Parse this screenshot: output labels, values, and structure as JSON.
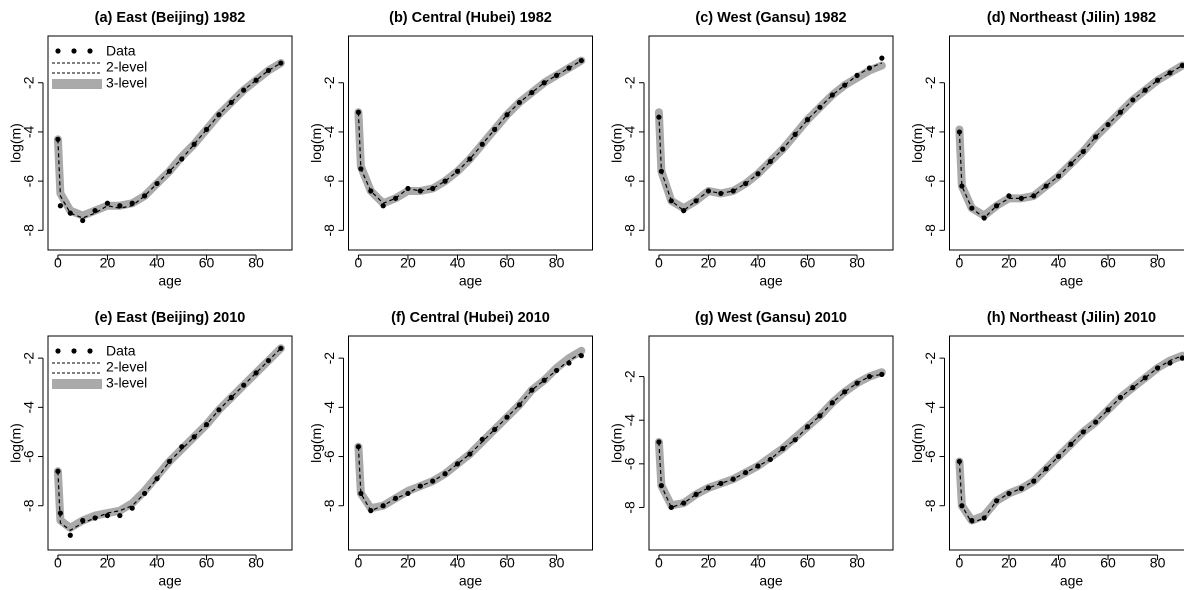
{
  "chart_data": [
    {
      "type": "line",
      "title": "(a) East (Beijing) 1982",
      "xlabel": "age",
      "ylabel": "log(m)",
      "legend": "top-left",
      "x": [
        0,
        1,
        5,
        10,
        15,
        20,
        25,
        30,
        35,
        40,
        45,
        50,
        55,
        60,
        65,
        70,
        75,
        80,
        85,
        90
      ],
      "xlim": [
        -4,
        94.5
      ],
      "xticks": [
        0,
        20,
        40,
        60,
        80
      ],
      "ylim": [
        -8.8,
        -0.1
      ],
      "yticks": [
        -8,
        -6,
        -4,
        -2
      ],
      "series": [
        {
          "name": "3-level",
          "style": "band",
          "color": "#aaaaaa",
          "values": [
            -4.3,
            -6.5,
            -7.2,
            -7.4,
            -7.2,
            -7.0,
            -7.0,
            -6.9,
            -6.6,
            -6.1,
            -5.6,
            -5.0,
            -4.5,
            -3.9,
            -3.3,
            -2.8,
            -2.3,
            -1.9,
            -1.5,
            -1.2
          ]
        },
        {
          "name": "2-level",
          "style": "dashed",
          "color": "#000000",
          "values": [
            -4.3,
            -6.6,
            -7.3,
            -7.5,
            -7.3,
            -7.0,
            -7.1,
            -7.0,
            -6.6,
            -6.1,
            -5.6,
            -5.1,
            -4.5,
            -3.9,
            -3.3,
            -2.8,
            -2.3,
            -1.9,
            -1.5,
            -1.2
          ]
        },
        {
          "name": "Data",
          "style": "points",
          "color": "#000000",
          "values": [
            -4.3,
            -7.0,
            -7.3,
            -7.6,
            -7.2,
            -6.9,
            -7.0,
            -6.9,
            -6.6,
            -6.1,
            -5.6,
            -5.1,
            -4.5,
            -3.9,
            -3.3,
            -2.8,
            -2.3,
            -1.9,
            -1.5,
            -1.2
          ]
        }
      ]
    },
    {
      "type": "line",
      "title": "(b) Central (Hubei) 1982",
      "xlabel": "age",
      "ylabel": "log(m)",
      "x": [
        0,
        1,
        5,
        10,
        15,
        20,
        25,
        30,
        35,
        40,
        45,
        50,
        55,
        60,
        65,
        70,
        75,
        80,
        85,
        90
      ],
      "xlim": [
        -4,
        94.5
      ],
      "xticks": [
        0,
        20,
        40,
        60,
        80
      ],
      "ylim": [
        -8.8,
        -0.1
      ],
      "yticks": [
        -8,
        -6,
        -4,
        -2
      ],
      "series": [
        {
          "style": "band",
          "color": "#aaaaaa",
          "values": [
            -3.2,
            -5.4,
            -6.4,
            -6.9,
            -6.7,
            -6.4,
            -6.4,
            -6.3,
            -6.0,
            -5.6,
            -5.1,
            -4.5,
            -3.9,
            -3.3,
            -2.8,
            -2.4,
            -2.0,
            -1.7,
            -1.4,
            -1.1
          ]
        },
        {
          "style": "dashed",
          "color": "#000000",
          "values": [
            -3.2,
            -5.5,
            -6.4,
            -6.9,
            -6.7,
            -6.3,
            -6.4,
            -6.3,
            -6.0,
            -5.6,
            -5.1,
            -4.5,
            -3.9,
            -3.3,
            -2.8,
            -2.4,
            -2.0,
            -1.7,
            -1.4,
            -1.1
          ]
        },
        {
          "style": "points",
          "color": "#000000",
          "values": [
            -3.2,
            -5.5,
            -6.4,
            -7.0,
            -6.7,
            -6.3,
            -6.4,
            -6.3,
            -6.0,
            -5.6,
            -5.1,
            -4.5,
            -3.9,
            -3.3,
            -2.8,
            -2.4,
            -2.0,
            -1.7,
            -1.4,
            -1.1
          ]
        }
      ]
    },
    {
      "type": "line",
      "title": "(c) West (Gansu) 1982",
      "xlabel": "age",
      "ylabel": "log(m)",
      "x": [
        0,
        1,
        5,
        10,
        15,
        20,
        25,
        30,
        35,
        40,
        45,
        50,
        55,
        60,
        65,
        70,
        75,
        80,
        85,
        90
      ],
      "xlim": [
        -4,
        94.5
      ],
      "xticks": [
        0,
        20,
        40,
        60,
        80
      ],
      "ylim": [
        -8.8,
        -0.1
      ],
      "yticks": [
        -8,
        -6,
        -4,
        -2
      ],
      "series": [
        {
          "style": "band",
          "color": "#aaaaaa",
          "values": [
            -3.2,
            -5.6,
            -6.8,
            -7.1,
            -6.8,
            -6.4,
            -6.5,
            -6.4,
            -6.1,
            -5.7,
            -5.2,
            -4.7,
            -4.1,
            -3.5,
            -3.0,
            -2.5,
            -2.1,
            -1.8,
            -1.5,
            -1.3
          ]
        },
        {
          "style": "dashed",
          "color": "#000000",
          "values": [
            -3.3,
            -5.6,
            -6.8,
            -7.2,
            -6.8,
            -6.4,
            -6.5,
            -6.4,
            -6.1,
            -5.7,
            -5.2,
            -4.7,
            -4.1,
            -3.5,
            -3.0,
            -2.5,
            -2.1,
            -1.7,
            -1.4,
            -1.2
          ]
        },
        {
          "style": "points",
          "color": "#000000",
          "values": [
            -3.4,
            -5.6,
            -6.8,
            -7.2,
            -6.8,
            -6.4,
            -6.5,
            -6.4,
            -6.1,
            -5.7,
            -5.2,
            -4.7,
            -4.1,
            -3.5,
            -3.0,
            -2.5,
            -2.1,
            -1.7,
            -1.4,
            -1.0
          ]
        }
      ]
    },
    {
      "type": "line",
      "title": "(d) Northeast (Jilin) 1982",
      "xlabel": "age",
      "ylabel": "log(m)",
      "x": [
        0,
        1,
        5,
        10,
        15,
        20,
        25,
        30,
        35,
        40,
        45,
        50,
        55,
        60,
        65,
        70,
        75,
        80,
        85,
        90
      ],
      "xlim": [
        -4,
        94.5
      ],
      "xticks": [
        0,
        20,
        40,
        60,
        80
      ],
      "ylim": [
        -8.8,
        -0.1
      ],
      "yticks": [
        -8,
        -6,
        -4,
        -2
      ],
      "series": [
        {
          "style": "band",
          "color": "#aaaaaa",
          "values": [
            -3.9,
            -6.2,
            -7.1,
            -7.4,
            -7.0,
            -6.7,
            -6.7,
            -6.6,
            -6.2,
            -5.8,
            -5.3,
            -4.8,
            -4.2,
            -3.7,
            -3.2,
            -2.7,
            -2.3,
            -1.9,
            -1.6,
            -1.3
          ]
        },
        {
          "style": "dashed",
          "color": "#000000",
          "values": [
            -4.0,
            -6.2,
            -7.1,
            -7.5,
            -7.0,
            -6.7,
            -6.7,
            -6.6,
            -6.2,
            -5.8,
            -5.3,
            -4.8,
            -4.2,
            -3.7,
            -3.2,
            -2.7,
            -2.3,
            -1.9,
            -1.6,
            -1.3
          ]
        },
        {
          "style": "points",
          "color": "#000000",
          "values": [
            -4.0,
            -6.2,
            -7.1,
            -7.5,
            -7.0,
            -6.6,
            -6.7,
            -6.6,
            -6.2,
            -5.8,
            -5.3,
            -4.8,
            -4.2,
            -3.7,
            -3.2,
            -2.7,
            -2.3,
            -1.9,
            -1.6,
            -1.3
          ]
        }
      ]
    },
    {
      "type": "line",
      "title": "(e) East (Beijing) 2010",
      "xlabel": "age",
      "ylabel": "log(m)",
      "legend": "top-left",
      "x": [
        0,
        1,
        5,
        10,
        15,
        20,
        25,
        30,
        35,
        40,
        45,
        50,
        55,
        60,
        65,
        70,
        75,
        80,
        85,
        90
      ],
      "xlim": [
        -4,
        94.5
      ],
      "xticks": [
        0,
        20,
        40,
        60,
        80
      ],
      "ylim": [
        -9.8,
        -1.1
      ],
      "yticks": [
        -8,
        -6,
        -4,
        -2
      ],
      "series": [
        {
          "name": "3-level",
          "style": "band",
          "color": "#aaaaaa",
          "values": [
            -6.6,
            -8.6,
            -8.9,
            -8.6,
            -8.4,
            -8.3,
            -8.2,
            -7.9,
            -7.4,
            -6.8,
            -6.2,
            -5.7,
            -5.2,
            -4.7,
            -4.1,
            -3.6,
            -3.1,
            -2.6,
            -2.1,
            -1.6
          ]
        },
        {
          "name": "2-level",
          "style": "dashed",
          "color": "#000000",
          "values": [
            -6.6,
            -8.7,
            -9.0,
            -8.7,
            -8.5,
            -8.3,
            -8.2,
            -8.0,
            -7.5,
            -6.9,
            -6.2,
            -5.7,
            -5.2,
            -4.7,
            -4.1,
            -3.6,
            -3.1,
            -2.6,
            -2.1,
            -1.6
          ]
        },
        {
          "name": "Data",
          "style": "points",
          "color": "#000000",
          "values": [
            -6.6,
            -8.3,
            -9.2,
            -8.6,
            -8.5,
            -8.4,
            -8.4,
            -8.1,
            -7.5,
            -6.9,
            -6.2,
            -5.6,
            -5.2,
            -4.7,
            -4.1,
            -3.6,
            -3.1,
            -2.6,
            -2.1,
            -1.6
          ]
        }
      ]
    },
    {
      "type": "line",
      "title": "(f) Central (Hubei) 2010",
      "xlabel": "age",
      "ylabel": "log(m)",
      "x": [
        0,
        1,
        5,
        10,
        15,
        20,
        25,
        30,
        35,
        40,
        45,
        50,
        55,
        60,
        65,
        70,
        75,
        80,
        85,
        90
      ],
      "xlim": [
        -4,
        94.5
      ],
      "xticks": [
        0,
        20,
        40,
        60,
        80
      ],
      "ylim": [
        -9.8,
        -1.1
      ],
      "yticks": [
        -8,
        -6,
        -4,
        -2
      ],
      "series": [
        {
          "style": "band",
          "color": "#aaaaaa",
          "values": [
            -5.6,
            -7.5,
            -8.1,
            -8.0,
            -7.7,
            -7.4,
            -7.2,
            -7.0,
            -6.7,
            -6.3,
            -5.9,
            -5.4,
            -4.9,
            -4.4,
            -3.9,
            -3.3,
            -2.9,
            -2.4,
            -2.0,
            -1.7
          ]
        },
        {
          "style": "dashed",
          "color": "#000000",
          "values": [
            -5.6,
            -7.5,
            -8.2,
            -8.0,
            -7.7,
            -7.5,
            -7.2,
            -7.0,
            -6.7,
            -6.3,
            -5.9,
            -5.4,
            -4.9,
            -4.4,
            -3.9,
            -3.3,
            -2.9,
            -2.5,
            -2.1,
            -1.8
          ]
        },
        {
          "style": "points",
          "color": "#000000",
          "values": [
            -5.6,
            -7.5,
            -8.2,
            -8.0,
            -7.7,
            -7.5,
            -7.2,
            -7.0,
            -6.7,
            -6.3,
            -5.9,
            -5.3,
            -4.9,
            -4.4,
            -3.9,
            -3.3,
            -2.9,
            -2.5,
            -2.2,
            -1.9
          ]
        }
      ]
    },
    {
      "type": "line",
      "title": "(g) West (Gansu) 2010",
      "xlabel": "age",
      "ylabel": "log(m)",
      "x": [
        0,
        1,
        5,
        10,
        15,
        20,
        25,
        30,
        35,
        40,
        45,
        50,
        55,
        60,
        65,
        70,
        75,
        80,
        85,
        90
      ],
      "xlim": [
        -4,
        94.5
      ],
      "xticks": [
        0,
        20,
        40,
        60,
        80
      ],
      "ylim": [
        -9.95,
        -0.14
      ],
      "yticks": [
        -8,
        -6,
        -4,
        -2
      ],
      "series": [
        {
          "style": "band",
          "color": "#aaaaaa",
          "values": [
            -5.0,
            -7.0,
            -7.9,
            -7.8,
            -7.4,
            -7.1,
            -6.9,
            -6.7,
            -6.4,
            -6.1,
            -5.7,
            -5.3,
            -4.8,
            -4.3,
            -3.8,
            -3.2,
            -2.7,
            -2.3,
            -2.0,
            -1.8
          ]
        },
        {
          "style": "dashed",
          "color": "#000000",
          "values": [
            -5.0,
            -7.0,
            -8.0,
            -7.8,
            -7.4,
            -7.1,
            -6.9,
            -6.7,
            -6.4,
            -6.1,
            -5.8,
            -5.3,
            -4.9,
            -4.3,
            -3.8,
            -3.2,
            -2.7,
            -2.3,
            -2.0,
            -1.9
          ]
        },
        {
          "style": "points",
          "color": "#000000",
          "values": [
            -5.0,
            -7.0,
            -8.0,
            -7.8,
            -7.4,
            -7.1,
            -6.9,
            -6.7,
            -6.4,
            -6.1,
            -5.8,
            -5.3,
            -4.9,
            -4.3,
            -3.8,
            -3.2,
            -2.7,
            -2.3,
            -2.0,
            -1.9
          ]
        }
      ]
    },
    {
      "type": "line",
      "title": "(h) Northeast (Jilin) 2010",
      "xlabel": "age",
      "ylabel": "log(m)",
      "x": [
        0,
        1,
        5,
        10,
        15,
        20,
        25,
        30,
        35,
        40,
        45,
        50,
        55,
        60,
        65,
        70,
        75,
        80,
        85,
        90
      ],
      "xlim": [
        -4,
        94.5
      ],
      "xticks": [
        0,
        20,
        40,
        60,
        80
      ],
      "ylim": [
        -9.8,
        -1.1
      ],
      "yticks": [
        -8,
        -6,
        -4,
        -2
      ],
      "series": [
        {
          "style": "band",
          "color": "#aaaaaa",
          "values": [
            -6.2,
            -8.0,
            -8.6,
            -8.4,
            -7.8,
            -7.5,
            -7.3,
            -7.0,
            -6.5,
            -6.0,
            -5.5,
            -5.0,
            -4.6,
            -4.1,
            -3.6,
            -3.2,
            -2.8,
            -2.4,
            -2.1,
            -1.9
          ]
        },
        {
          "style": "dashed",
          "color": "#000000",
          "values": [
            -6.2,
            -8.0,
            -8.7,
            -8.5,
            -7.8,
            -7.5,
            -7.3,
            -7.0,
            -6.5,
            -6.0,
            -5.5,
            -5.0,
            -4.6,
            -4.1,
            -3.6,
            -3.2,
            -2.8,
            -2.4,
            -2.1,
            -1.9
          ]
        },
        {
          "style": "points",
          "color": "#000000",
          "values": [
            -6.2,
            -8.0,
            -8.6,
            -8.5,
            -7.8,
            -7.5,
            -7.3,
            -7.0,
            -6.5,
            -6.0,
            -5.5,
            -5.0,
            -4.6,
            -4.1,
            -3.6,
            -3.2,
            -2.8,
            -2.4,
            -2.2,
            -2.0
          ]
        }
      ]
    }
  ]
}
